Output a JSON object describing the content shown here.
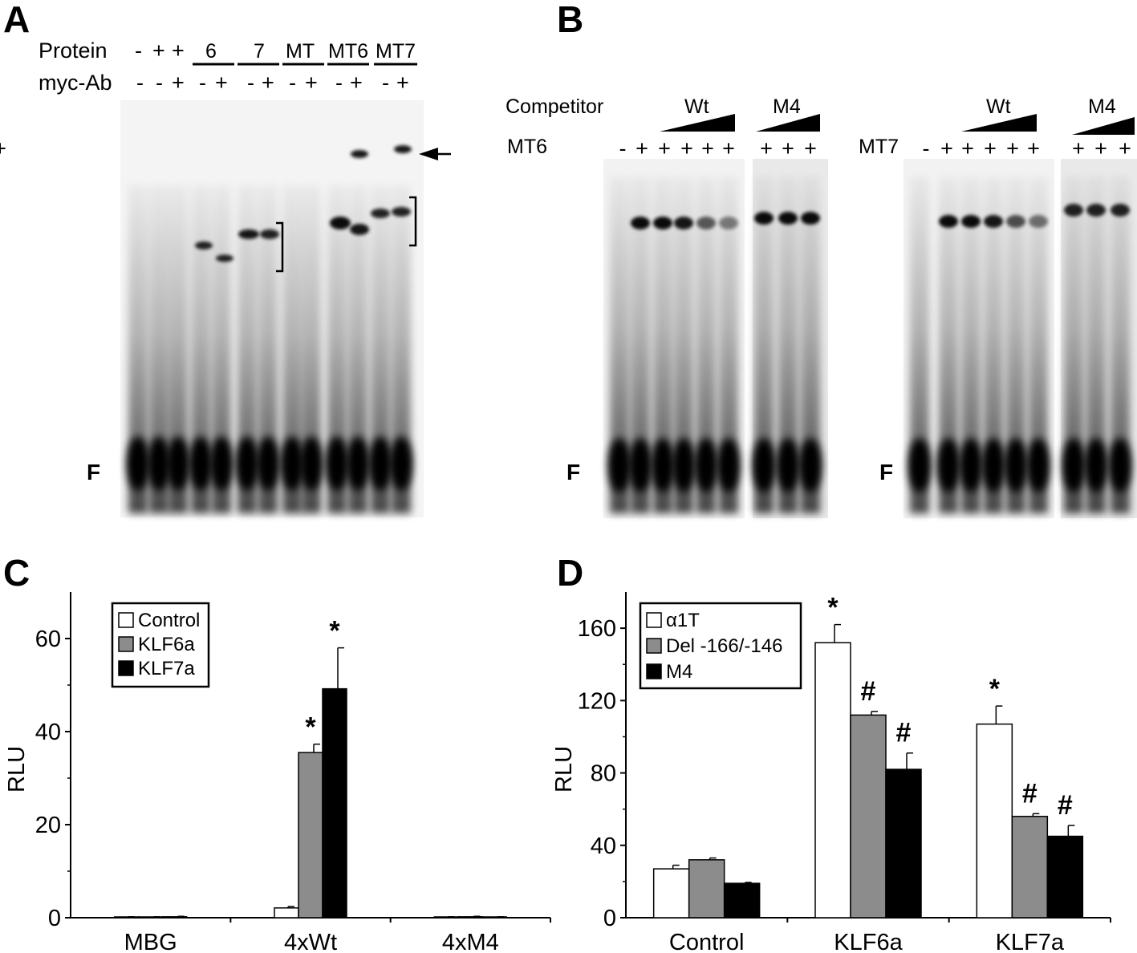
{
  "panels": {
    "A": {
      "letter": "A",
      "row1_label": "Protein",
      "row2_label": "myc-Ab",
      "row1_marks": [
        "-",
        "+",
        "+"
      ],
      "groups": [
        {
          "name": "6",
          "signs": [
            "-",
            "+"
          ]
        },
        {
          "name": "7",
          "signs": [
            "-",
            "+"
          ]
        },
        {
          "name": "MT",
          "signs": [
            "-",
            "+"
          ]
        },
        {
          "name": "MT6",
          "signs": [
            "-",
            "+"
          ]
        },
        {
          "name": "MT7",
          "signs": [
            "-",
            "+"
          ]
        }
      ],
      "row2_first_marks": [
        "-",
        "-",
        "+"
      ],
      "free_probe_label": "F"
    },
    "B": {
      "letter": "B",
      "competitor_label": "Competitor",
      "left": {
        "protein_label": "MT6",
        "wt_label": "Wt",
        "m4_label": "M4",
        "signs_main": [
          "-",
          "+",
          "+",
          "+",
          "+",
          "+",
          "+"
        ],
        "signs_m4": [
          "+",
          "+",
          "+"
        ],
        "free_probe_label": "F"
      },
      "right": {
        "protein_label": "MT7",
        "wt_label": "Wt",
        "m4_label": "M4",
        "signs_main": [
          "-",
          "+",
          "+",
          "+",
          "+",
          "+",
          "+"
        ],
        "signs_m4": [
          "+",
          "+",
          "+"
        ],
        "free_probe_label": "F"
      }
    }
  },
  "chart_data": [
    {
      "panel": "C",
      "type": "bar",
      "letter": "C",
      "categories": [
        "MBG",
        "4xWt",
        "4xM4"
      ],
      "series": [
        {
          "name": "Control",
          "color": "#ffffff",
          "values": [
            0.1,
            2.1,
            0.1
          ],
          "errors": [
            0.1,
            0.3,
            0.1
          ],
          "sig": [
            "",
            "",
            ""
          ]
        },
        {
          "name": "KLF6a",
          "color": "#8c8c8c",
          "values": [
            0.1,
            35.5,
            0.2
          ],
          "errors": [
            0.1,
            1.8,
            0.1
          ],
          "sig": [
            "",
            "*",
            ""
          ]
        },
        {
          "name": "KLF7a",
          "color": "#000000",
          "values": [
            0.2,
            49.2,
            0.1
          ],
          "errors": [
            0.1,
            8.8,
            0.1
          ],
          "sig": [
            "",
            "*",
            ""
          ]
        }
      ],
      "ylabel": "RLU",
      "ylim": [
        0,
        70
      ],
      "yticks": [
        0,
        20,
        40,
        60
      ],
      "legend_position": "top-left"
    },
    {
      "panel": "D",
      "type": "bar",
      "letter": "D",
      "categories": [
        "Control",
        "KLF6a",
        "KLF7a"
      ],
      "series": [
        {
          "name": "α1T",
          "color": "#ffffff",
          "values": [
            27,
            152,
            107
          ],
          "errors": [
            2,
            10,
            10
          ],
          "sig": [
            "",
            "*",
            "*"
          ]
        },
        {
          "name": "Del -166/-146",
          "color": "#8c8c8c",
          "values": [
            32,
            112,
            56
          ],
          "errors": [
            1,
            2,
            1.5
          ],
          "sig": [
            "",
            "#",
            "#"
          ]
        },
        {
          "name": "M4",
          "color": "#000000",
          "values": [
            19,
            82,
            45
          ],
          "errors": [
            0.5,
            9,
            6
          ],
          "sig": [
            "",
            "#",
            "#"
          ]
        }
      ],
      "ylabel": "RLU",
      "ylim": [
        0,
        180
      ],
      "yticks": [
        0,
        40,
        80,
        120,
        160
      ],
      "legend_position": "top-left"
    }
  ]
}
